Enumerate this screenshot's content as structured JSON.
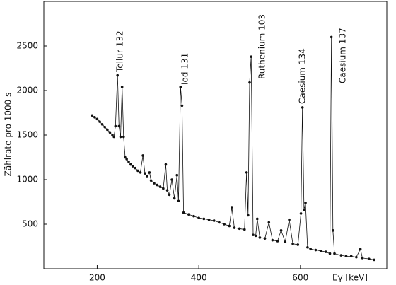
{
  "chart_data": {
    "type": "line",
    "x_label": "Eγ [keV]",
    "y_label": "Zählrate pro 1000 s",
    "annotations": [
      "Tellur 132",
      "Iod 131",
      "Ruthenium 103",
      "Caesium 134",
      "Caesium 137"
    ],
    "x": [
      190,
      195,
      200,
      205,
      210,
      215,
      220,
      225,
      230,
      233,
      236,
      240,
      243,
      246,
      249,
      252,
      255,
      258,
      262,
      266,
      270,
      275,
      280,
      285,
      290,
      294,
      298,
      303,
      306,
      312,
      318,
      324,
      330,
      335,
      338,
      342,
      347,
      352,
      357,
      360,
      364,
      367,
      370,
      380,
      390,
      400,
      410,
      420,
      430,
      440,
      450,
      460,
      465,
      470,
      480,
      490,
      494,
      497,
      500,
      503,
      507,
      512,
      515,
      520,
      530,
      538,
      545,
      555,
      562,
      570,
      578,
      585,
      595,
      601,
      604,
      607,
      610,
      614,
      620,
      630,
      640,
      650,
      658,
      661,
      664,
      667,
      680,
      690,
      700,
      710,
      718,
      722,
      735,
      745
    ],
    "values": [
      1720,
      1700,
      1680,
      1650,
      1620,
      1590,
      1560,
      1530,
      1500,
      1480,
      1600,
      2170,
      1600,
      1480,
      2040,
      1480,
      1250,
      1230,
      1200,
      1170,
      1150,
      1130,
      1100,
      1080,
      1270,
      1070,
      1040,
      1080,
      990,
      960,
      940,
      920,
      900,
      1170,
      880,
      830,
      1000,
      790,
      1050,
      760,
      2040,
      1830,
      630,
      610,
      590,
      570,
      560,
      550,
      540,
      520,
      500,
      480,
      690,
      460,
      450,
      440,
      1080,
      600,
      2090,
      2380,
      380,
      370,
      560,
      350,
      340,
      520,
      320,
      310,
      430,
      300,
      550,
      280,
      270,
      620,
      1810,
      660,
      740,
      240,
      220,
      210,
      200,
      190,
      170,
      2600,
      430,
      170,
      150,
      140,
      140,
      130,
      220,
      120,
      110,
      100
    ],
    "color": "#111111",
    "xlim": [
      95,
      770
    ],
    "ylim": [
      0,
      3000
    ],
    "xticks": [
      200,
      400,
      600
    ],
    "yticks": [
      500,
      1000,
      1500,
      2000,
      2500
    ]
  }
}
